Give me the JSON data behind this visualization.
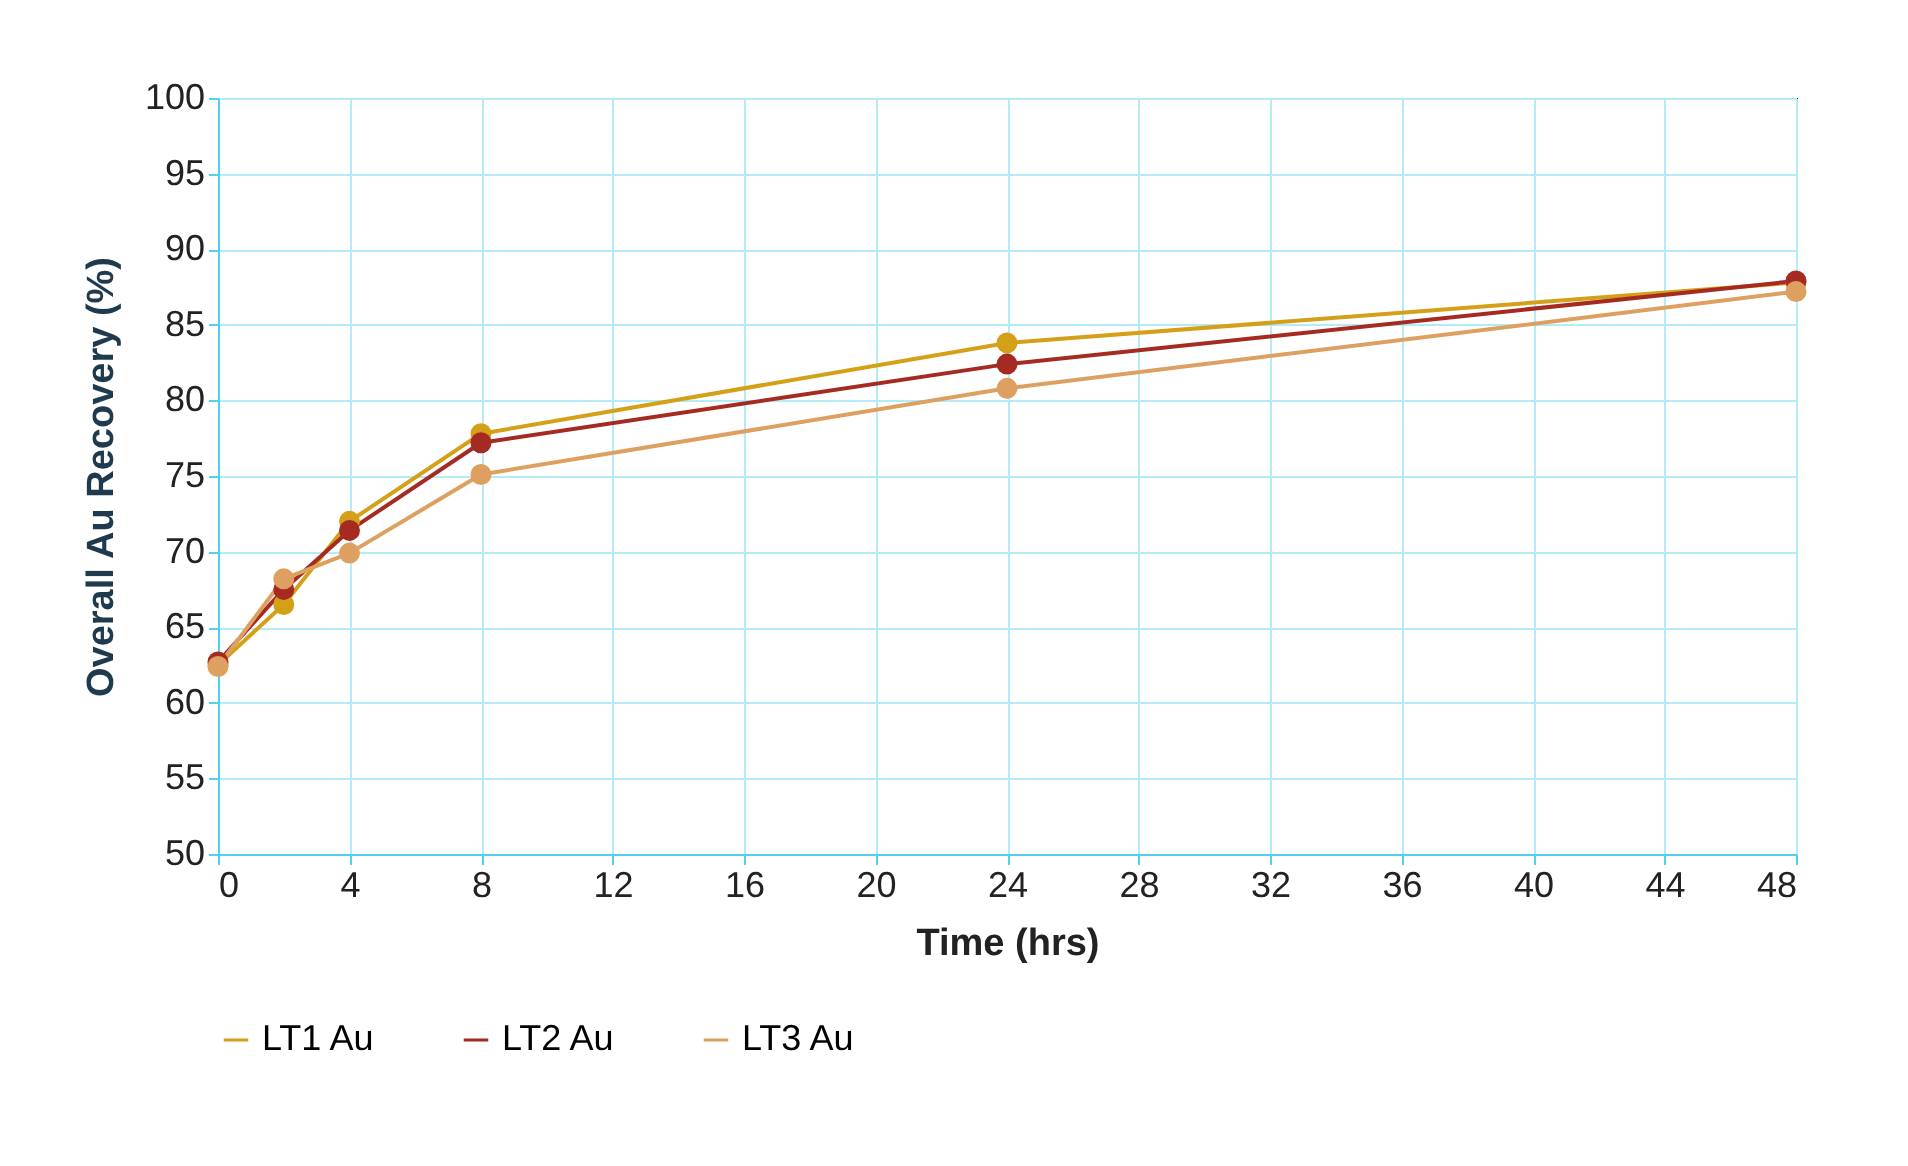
{
  "chart_data": {
    "type": "line",
    "xlabel": "Time (hrs)",
    "ylabel": "Overall Au Recovery (%)",
    "x": [
      0,
      2,
      4,
      8,
      24,
      48
    ],
    "series": [
      {
        "name": "LT1 Au",
        "color": "#d4a017",
        "values": [
          62.5,
          66.5,
          72.0,
          77.8,
          83.8,
          87.8
        ]
      },
      {
        "name": "LT2 Au",
        "color": "#a52a22",
        "values": [
          62.7,
          67.5,
          71.4,
          77.2,
          82.4,
          87.9
        ]
      },
      {
        "name": "LT3 Au",
        "color": "#dda060",
        "values": [
          62.4,
          68.2,
          69.9,
          75.1,
          80.8,
          87.2
        ]
      }
    ],
    "xlim": [
      0,
      48
    ],
    "xticks": [
      0,
      4,
      8,
      12,
      16,
      20,
      24,
      28,
      32,
      36,
      40,
      44,
      48
    ],
    "ylim": [
      50,
      100
    ],
    "yticks": [
      50,
      55,
      60,
      65,
      70,
      75,
      80,
      85,
      90,
      95,
      100
    ],
    "grid": true,
    "legend": "bottom",
    "marker": "circle",
    "line_style": "solid"
  }
}
